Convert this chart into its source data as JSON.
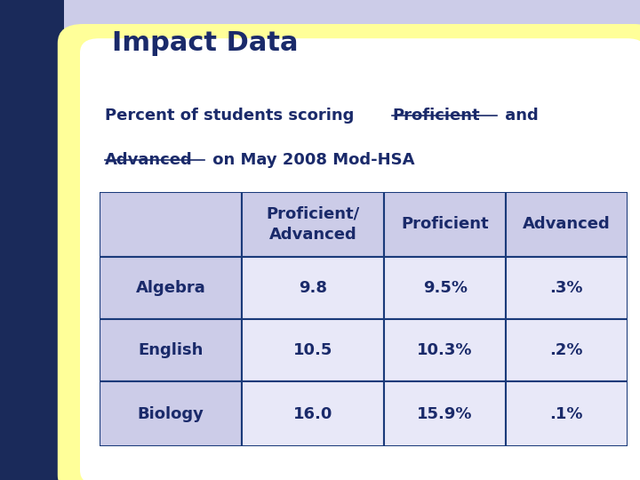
{
  "title": "Impact Data",
  "col_headers": [
    "Proficient/\nAdvanced",
    "Proficient",
    "Advanced"
  ],
  "row_headers": [
    "Algebra",
    "English",
    "Biology"
  ],
  "table_data": [
    [
      "9.8",
      "9.5%",
      ".3%"
    ],
    [
      "10.5",
      "10.3%",
      ".2%"
    ],
    [
      "16.0",
      "15.9%",
      ".1%"
    ]
  ],
  "bg_color": "#cccce8",
  "dark_bg": "#1a2a5a",
  "white_bg": "#ffffff",
  "yellow_border": "#ffff99",
  "header_cell_bg": "#cccce8",
  "border_color": "#1a3a7a",
  "title_color": "#1a2a6a",
  "text_color": "#1a2a6a",
  "title_fontsize": 22,
  "subtitle_fontsize": 13,
  "table_fontsize": 13
}
